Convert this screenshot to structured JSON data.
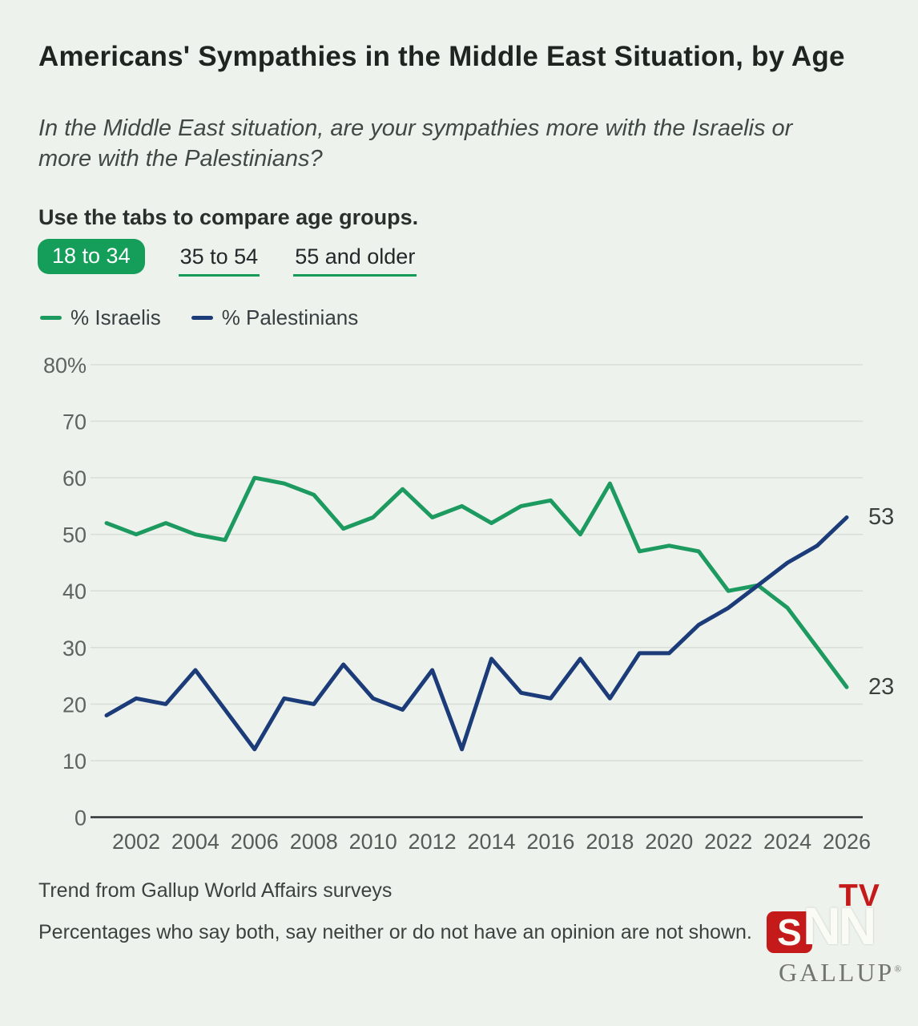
{
  "page": {
    "background": "#edf2ec"
  },
  "header": {
    "title": "Americans' Sympathies in the Middle East Situation, by Age",
    "subtitle": "In the Middle East situation, are your sympathies more with the Israelis or more with the Palestinians?"
  },
  "tabs": {
    "instruction": "Use the tabs to compare age groups.",
    "items": [
      {
        "label": "18 to 34",
        "active": true
      },
      {
        "label": "35 to 54",
        "active": false
      },
      {
        "label": "55 and older",
        "active": false
      }
    ]
  },
  "legend": {
    "items": [
      {
        "label": "% Israelis",
        "color": "#1d9a60"
      },
      {
        "label": "% Palestinians",
        "color": "#1c3b79"
      }
    ]
  },
  "chart_data": {
    "type": "line",
    "x": [
      2001,
      2002,
      2003,
      2004,
      2005,
      2006,
      2007,
      2008,
      2009,
      2010,
      2011,
      2012,
      2013,
      2014,
      2015,
      2016,
      2017,
      2018,
      2019,
      2020,
      2021,
      2022,
      2023,
      2024,
      2025,
      2026
    ],
    "series": [
      {
        "name": "% Israelis",
        "color": "#1d9a60",
        "values": [
          52,
          50,
          52,
          50,
          49,
          60,
          59,
          57,
          51,
          53,
          58,
          53,
          55,
          52,
          55,
          56,
          50,
          59,
          47,
          48,
          47,
          40,
          41,
          37,
          30,
          23
        ],
        "end_label": "23"
      },
      {
        "name": "% Palestinians",
        "color": "#1c3b79",
        "values": [
          18,
          21,
          20,
          26,
          19,
          12,
          21,
          20,
          27,
          21,
          19,
          26,
          12,
          28,
          22,
          21,
          28,
          21,
          29,
          29,
          34,
          37,
          41,
          45,
          48,
          53
        ],
        "end_label": "53"
      }
    ],
    "y_tick_labels": [
      "0",
      "10",
      "20",
      "30",
      "40",
      "50",
      "60",
      "70",
      "80%"
    ],
    "x_tick_labels": [
      "2002",
      "2004",
      "2006",
      "2008",
      "2010",
      "2012",
      "2014",
      "2016",
      "2018",
      "2020",
      "2022",
      "2024",
      "2026"
    ],
    "ylim": [
      0,
      80
    ],
    "grid": true,
    "legend_position": "top-left"
  },
  "footer": {
    "note1": "Trend from Gallup World Affairs surveys",
    "note2": "Percentages who say both, say neither or do not have an opinion are not shown."
  },
  "branding": {
    "snn_s": "S",
    "snn_nn": "NN",
    "snn_tv": "TV",
    "gallup": "GALLUP",
    "registered": "®",
    "red": "#c41a1a"
  }
}
